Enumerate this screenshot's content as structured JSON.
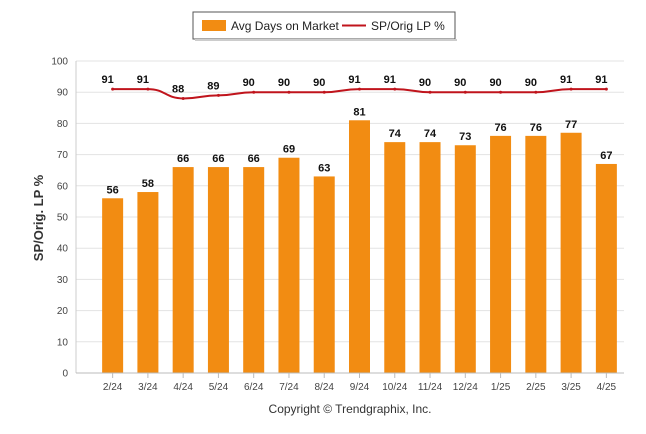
{
  "chart_data": {
    "type": "bar",
    "categories": [
      "2/24",
      "3/24",
      "4/24",
      "5/24",
      "6/24",
      "7/24",
      "8/24",
      "9/24",
      "10/24",
      "11/24",
      "12/24",
      "1/25",
      "2/25",
      "3/25",
      "4/25"
    ],
    "series": [
      {
        "name": "Avg Days on Market",
        "type": "bar",
        "color": "#F28C12",
        "values": [
          56,
          58,
          66,
          66,
          66,
          69,
          63,
          81,
          74,
          74,
          73,
          76,
          76,
          77,
          67
        ]
      },
      {
        "name": "SP/Orig LP %",
        "type": "line",
        "color": "#C0141C",
        "values": [
          91,
          91,
          88,
          89,
          90,
          90,
          90,
          91,
          91,
          90,
          90,
          90,
          90,
          91,
          91
        ]
      }
    ],
    "ylabel": "SP/Orig. LP %",
    "ylim": [
      0,
      100
    ],
    "yticks": [
      0,
      10,
      20,
      30,
      40,
      50,
      60,
      70,
      80,
      90,
      100
    ],
    "grid": true,
    "legend_position": "top-center"
  },
  "footer": "Copyright © Trendgraphix, Inc."
}
